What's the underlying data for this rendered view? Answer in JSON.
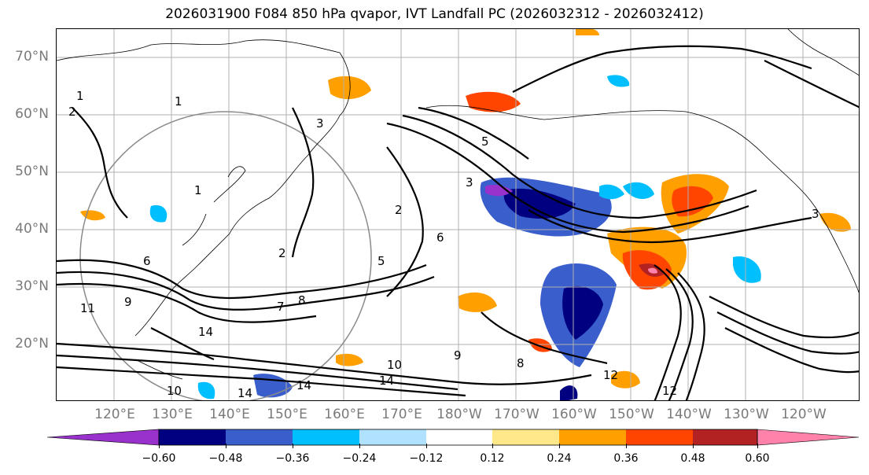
{
  "title": "2026031900 F084 850 hPa qvapor, IVT Landfall PC (2026032312 - 2026032412)",
  "map": {
    "lat_labels": [
      "70°N",
      "60°N",
      "50°N",
      "40°N",
      "30°N",
      "20°N"
    ],
    "lon_labels": [
      "120°E",
      "130°E",
      "140°E",
      "150°E",
      "160°E",
      "170°E",
      "180°W",
      "170°W",
      "160°W",
      "150°W",
      "140°W",
      "130°W",
      "120°W"
    ],
    "contour_labels": [
      "1",
      "1",
      "1",
      "2",
      "2",
      "2",
      "3",
      "3",
      "3",
      "5",
      "5",
      "6",
      "6",
      "7",
      "8",
      "8",
      "9",
      "9",
      "10",
      "10",
      "11",
      "12",
      "12",
      "14",
      "14",
      "14",
      "14"
    ]
  },
  "colorbar": {
    "ticks": [
      "−0.60",
      "−0.48",
      "−0.36",
      "−0.24",
      "−0.12",
      "0.12",
      "0.24",
      "0.36",
      "0.48",
      "0.60"
    ],
    "colors": [
      "#9932cc",
      "#000080",
      "#3a5fcd",
      "#00bfff",
      "#b0e2ff",
      "#ffffff",
      "#ffe88a",
      "#ff9f00",
      "#ff4500",
      "#b22222",
      "#ff82ab"
    ]
  }
}
